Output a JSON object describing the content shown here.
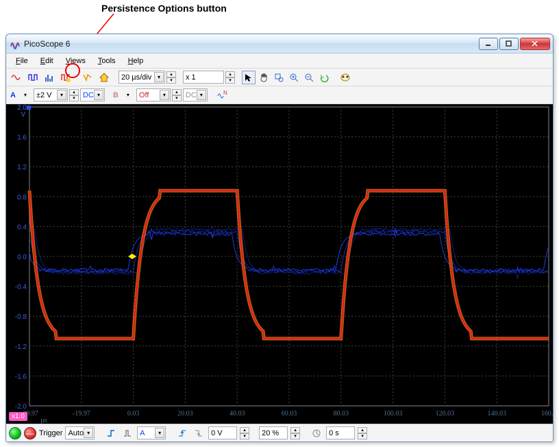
{
  "annotation": {
    "label": "Persistence Options button"
  },
  "window": {
    "title": "PicoScope 6"
  },
  "menu": {
    "file": "File",
    "edit": "Edit",
    "views": "Views",
    "tools": "Tools",
    "help": "Help"
  },
  "toolbar1": {
    "timebase": "20 µs/div",
    "zoom": "x 1"
  },
  "channel_bar": {
    "a_label": "A",
    "a_range": "±2 V",
    "a_coupling": "DC",
    "b_label": "B",
    "b_range": "Off",
    "b_coupling": "DC"
  },
  "scope": {
    "x1_label": "x1.0",
    "x_unit": "µs",
    "y_unit": "V",
    "y_ticks": [
      "2.0",
      "1.6",
      "1.2",
      "0.8",
      "0.4",
      "0.0",
      "-0.4",
      "-0.8",
      "-1.2",
      "-1.6",
      "-2.0"
    ],
    "x_ticks": [
      "-39.97",
      "-19.97",
      "0.03",
      "20.03",
      "40.03",
      "60.03",
      "80.03",
      "100.03",
      "120.03",
      "140.03",
      "160.0"
    ],
    "grid_color": "#444444",
    "bg_color": "#000000",
    "trace_primary_color": "#e02020",
    "trace_glow_color": "#ffaa00",
    "trace_persist_color": "#2040ff",
    "axis_text_color": "#507090",
    "trigger_marker_color": "#ffee00"
  },
  "status": {
    "trigger_label": "Trigger",
    "trigger_mode": "Auto",
    "trigger_source": "A",
    "trigger_level": "0 V",
    "pretrigger": "20 %",
    "delay": "0 s"
  }
}
